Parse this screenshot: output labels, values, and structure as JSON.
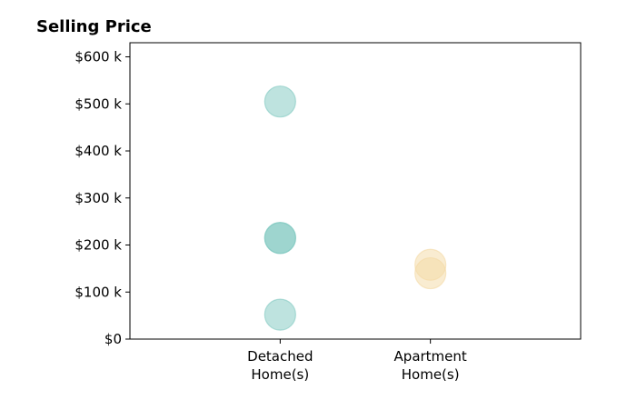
{
  "chart_data": {
    "type": "scatter",
    "title": "Selling Price",
    "xlabel": "",
    "ylabel": "",
    "categories": [
      "Detached\nHome(s)",
      "Apartment\nHome(s)"
    ],
    "ylim": [
      0,
      630000
    ],
    "xlim": [
      0,
      3
    ],
    "yticks": [
      0,
      100000,
      200000,
      300000,
      400000,
      500000,
      600000
    ],
    "ytick_labels": [
      "$0",
      "$100 k",
      "$200 k",
      "$300 k",
      "$400 k",
      "$500 k",
      "$600 k"
    ],
    "grid": false,
    "legend": "none",
    "series": [
      {
        "category_index": 0,
        "color": "#7ec8bf",
        "values": [
          505000,
          215000,
          215000,
          52000
        ]
      },
      {
        "category_index": 1,
        "color": "#f3d9a4",
        "values": [
          158000,
          140000
        ]
      }
    ]
  }
}
